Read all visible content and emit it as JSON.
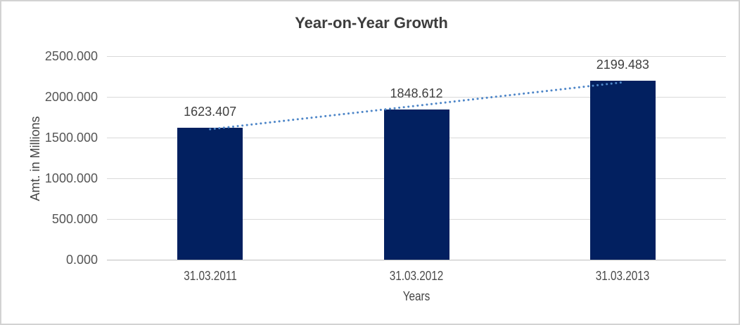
{
  "chart_data": {
    "type": "bar",
    "title": "Year-on-Year Growth",
    "xlabel": "Years",
    "ylabel": "Amt. in Millions",
    "categories": [
      "31.03.2011",
      "31.03.2012",
      "31.03.2013"
    ],
    "values": [
      1623.407,
      1848.612,
      2199.483
    ],
    "data_labels": [
      "1623.407",
      "1848.612",
      "2199.483"
    ],
    "yticks": [
      "0.000",
      "500.000",
      "1000.000",
      "1500.000",
      "2000.000",
      "2500.000"
    ],
    "ytick_values": [
      0,
      500,
      1000,
      1500,
      2000,
      2500
    ],
    "ylim": [
      0,
      2500
    ],
    "grid": true,
    "legend": false,
    "bar_color": "#022060",
    "gridline_color": "#d9d9d9",
    "axis_line_color": "#bfbfbf",
    "trendline": {
      "type": "linear",
      "style": "dotted",
      "color": "#4e86c8"
    }
  }
}
